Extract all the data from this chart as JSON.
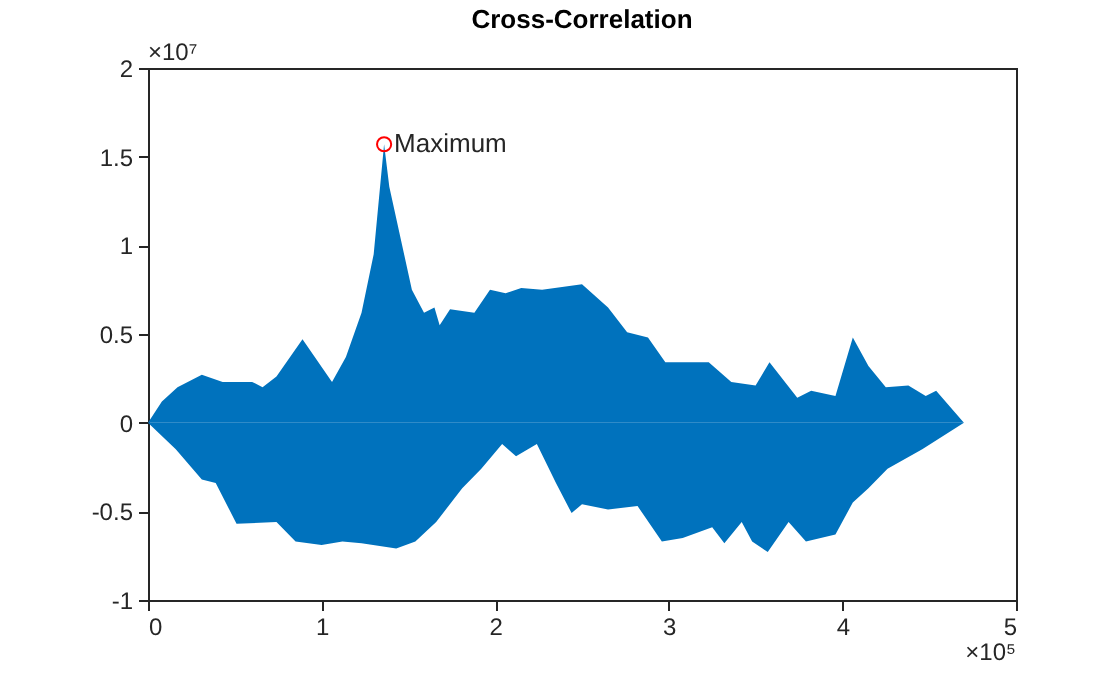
{
  "chart_data": {
    "type": "area",
    "title": "Cross-Correlation",
    "xlim": [
      0,
      5
    ],
    "ylim": [
      -1,
      2
    ],
    "xticks": [
      0,
      1,
      2,
      3,
      4,
      5
    ],
    "yticks": [
      -1,
      -0.5,
      0,
      0.5,
      1,
      1.5,
      2
    ],
    "grid": false,
    "series": [
      {
        "color": "#0072bd",
        "x": [
          0,
          0.08,
          0.17,
          0.31,
          0.43,
          0.6,
          0.66,
          0.74,
          0.89,
          1.06,
          1.14,
          1.23,
          1.3,
          1.36,
          1.39,
          1.52,
          1.59,
          1.65,
          1.68,
          1.74,
          1.88,
          1.97,
          2.06,
          2.15,
          2.27,
          2.5,
          2.65,
          2.76,
          2.88,
          2.98,
          3.23,
          3.36,
          3.5,
          3.58,
          3.74,
          3.82,
          3.96,
          4.06,
          4.15,
          4.25,
          4.38,
          4.48,
          4.54,
          4.7
        ],
        "values": [
          0,
          0.12,
          0.2,
          0.27,
          0.23,
          0.23,
          0.2,
          0.26,
          0.47,
          0.23,
          0.37,
          0.62,
          0.95,
          1.57,
          1.33,
          0.75,
          0.62,
          0.65,
          0.55,
          0.64,
          0.62,
          0.75,
          0.73,
          0.76,
          0.75,
          0.78,
          0.65,
          0.51,
          0.48,
          0.34,
          0.34,
          0.23,
          0.21,
          0.34,
          0.14,
          0.18,
          0.15,
          0.48,
          0.32,
          0.2,
          0.21,
          0.15,
          0.18,
          0
        ]
      },
      {
        "color": "#0072bd",
        "x": [
          0,
          0.16,
          0.31,
          0.39,
          0.51,
          0.74,
          0.85,
          1.0,
          1.12,
          1.23,
          1.43,
          1.54,
          1.66,
          1.81,
          1.92,
          2.04,
          2.12,
          2.24,
          2.35,
          2.44,
          2.5,
          2.65,
          2.82,
          2.96,
          3.08,
          3.25,
          3.32,
          3.42,
          3.48,
          3.57,
          3.69,
          3.79,
          3.96,
          4.06,
          4.15,
          4.26,
          4.46,
          4.7
        ],
        "values": [
          0,
          -0.15,
          -0.32,
          -0.34,
          -0.57,
          -0.56,
          -0.67,
          -0.69,
          -0.67,
          -0.68,
          -0.71,
          -0.67,
          -0.56,
          -0.37,
          -0.26,
          -0.12,
          -0.19,
          -0.12,
          -0.34,
          -0.51,
          -0.46,
          -0.49,
          -0.47,
          -0.67,
          -0.65,
          -0.59,
          -0.68,
          -0.56,
          -0.67,
          -0.73,
          -0.56,
          -0.67,
          -0.63,
          -0.45,
          -0.37,
          -0.26,
          -0.15,
          0
        ]
      },
      {
        "type": "scatter",
        "color": "#ff0000",
        "marker": "circle",
        "x": [
          1.36
        ],
        "values": [
          1.57
        ]
      }
    ],
    "annotations": [
      {
        "text": "Maximum",
        "x": 1.36,
        "y": 1.57
      },
      "×10⁷",
      "×10⁵"
    ]
  }
}
